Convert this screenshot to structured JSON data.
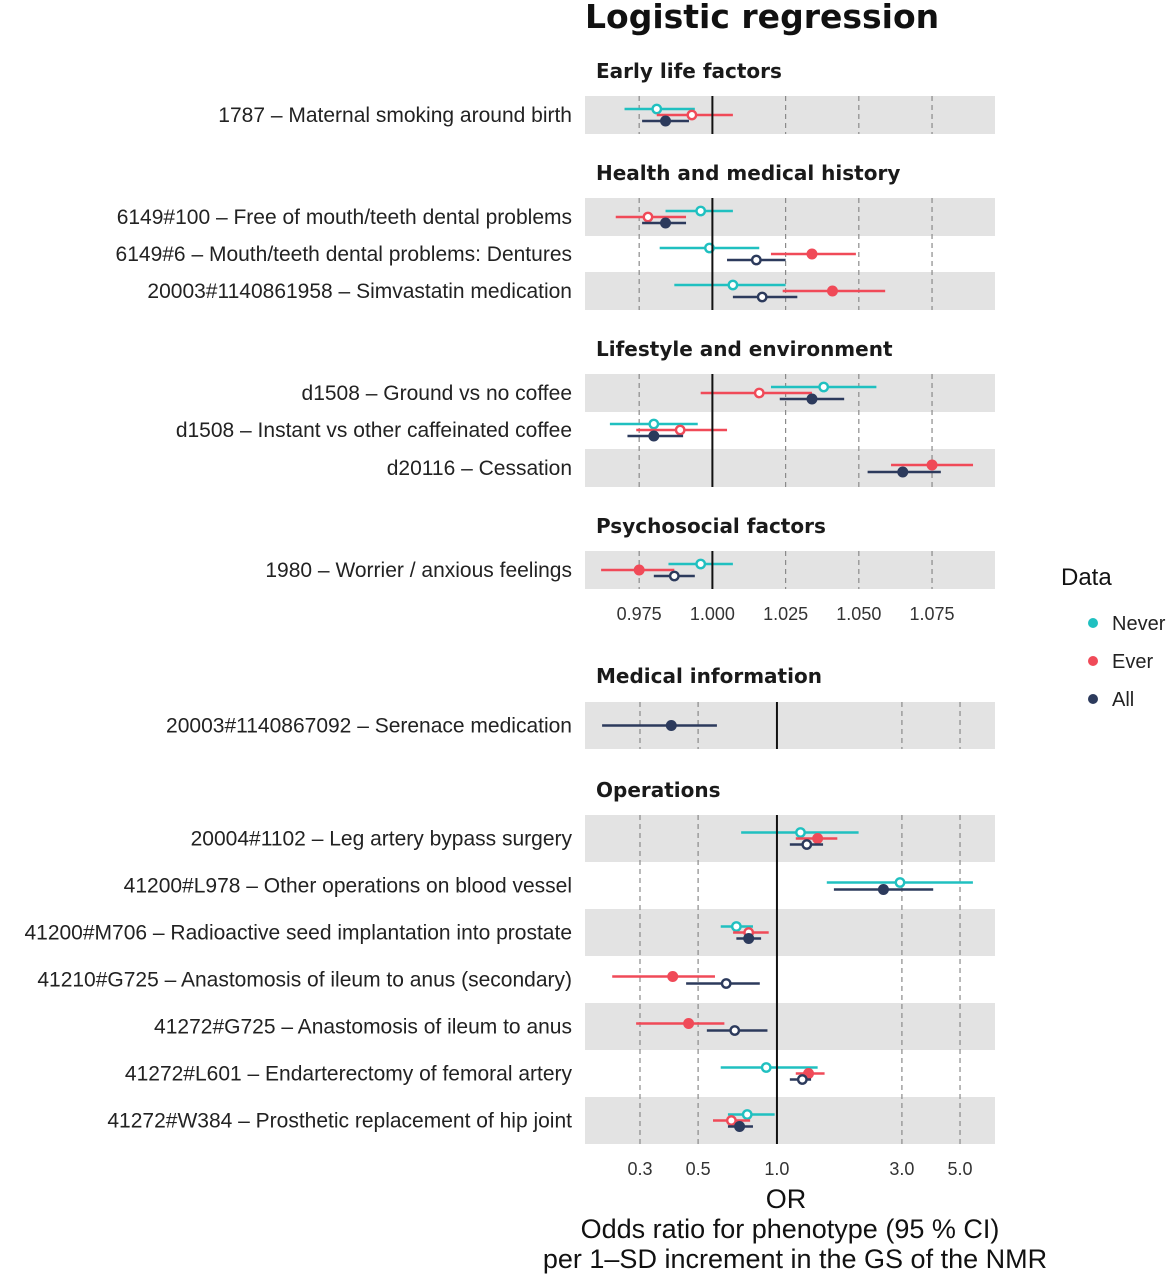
{
  "colors": {
    "Never": "#20c0c0",
    "Ever": "#f04a58",
    "All": "#2c3a5c",
    "band": "#e3e3e3"
  },
  "chart_data": [
    {
      "type": "forest",
      "title": "Logistic regression",
      "scale": "linear",
      "reference": 1.0,
      "xlim": [
        0.9565,
        1.0965
      ],
      "xticks": [
        "0.975",
        "1.000",
        "1.025",
        "1.050",
        "1.075"
      ],
      "sections": [
        {
          "name": "Early life factors",
          "rows": [
            {
              "label": "1787 – Maternal smoking around birth",
              "Never": {
                "est": 0.981,
                "lo": 0.97,
                "hi": 0.994,
                "filled": false
              },
              "Ever": {
                "est": 0.993,
                "lo": 0.981,
                "hi": 1.007,
                "filled": false
              },
              "All": {
                "est": 0.984,
                "lo": 0.976,
                "hi": 0.992,
                "filled": true
              }
            }
          ]
        },
        {
          "name": "Health and medical history",
          "rows": [
            {
              "label": "6149#100 – Free of mouth/teeth dental problems",
              "Never": {
                "est": 0.996,
                "lo": 0.984,
                "hi": 1.007,
                "filled": false
              },
              "Ever": {
                "est": 0.978,
                "lo": 0.967,
                "hi": 0.991,
                "filled": false
              },
              "All": {
                "est": 0.984,
                "lo": 0.976,
                "hi": 0.991,
                "filled": true
              }
            },
            {
              "label": "6149#6 – Mouth/teeth dental problems: Dentures",
              "Never": {
                "est": 0.999,
                "lo": 0.982,
                "hi": 1.016,
                "filled": false
              },
              "Ever": {
                "est": 1.034,
                "lo": 1.02,
                "hi": 1.049,
                "filled": true
              },
              "All": {
                "est": 1.015,
                "lo": 1.005,
                "hi": 1.025,
                "filled": false
              }
            },
            {
              "label": "20003#1140861958 – Simvastatin medication",
              "Never": {
                "est": 1.007,
                "lo": 0.987,
                "hi": 1.025,
                "filled": false
              },
              "Ever": {
                "est": 1.041,
                "lo": 1.024,
                "hi": 1.059,
                "filled": true
              },
              "All": {
                "est": 1.017,
                "lo": 1.007,
                "hi": 1.029,
                "filled": false
              }
            }
          ]
        },
        {
          "name": "Lifestyle and environment",
          "rows": [
            {
              "label": "d1508 – Ground vs no coffee",
              "Never": {
                "est": 1.038,
                "lo": 1.02,
                "hi": 1.056,
                "filled": false
              },
              "Ever": {
                "est": 1.016,
                "lo": 0.996,
                "hi": 1.034,
                "filled": false
              },
              "All": {
                "est": 1.034,
                "lo": 1.023,
                "hi": 1.045,
                "filled": true
              }
            },
            {
              "label": "d1508 – Instant vs other caffeinated coffee",
              "Never": {
                "est": 0.98,
                "lo": 0.965,
                "hi": 0.995,
                "filled": false
              },
              "Ever": {
                "est": 0.989,
                "lo": 0.974,
                "hi": 1.005,
                "filled": false
              },
              "All": {
                "est": 0.98,
                "lo": 0.971,
                "hi": 0.99,
                "filled": true
              }
            },
            {
              "label": "d20116 – Cessation",
              "Never": null,
              "Ever": {
                "est": 1.075,
                "lo": 1.061,
                "hi": 1.089,
                "filled": true
              },
              "All": {
                "est": 1.065,
                "lo": 1.053,
                "hi": 1.078,
                "filled": true
              }
            }
          ]
        },
        {
          "name": "Psychosocial factors",
          "rows": [
            {
              "label": "1980 – Worrier / anxious feelings",
              "Never": {
                "est": 0.996,
                "lo": 0.985,
                "hi": 1.007,
                "filled": false
              },
              "Ever": {
                "est": 0.975,
                "lo": 0.962,
                "hi": 0.987,
                "filled": true
              },
              "All": {
                "est": 0.987,
                "lo": 0.98,
                "hi": 0.994,
                "filled": false
              }
            }
          ]
        }
      ]
    },
    {
      "type": "forest",
      "scale": "log",
      "reference": 1.0,
      "xlim": [
        0.185,
        6.8
      ],
      "xticks": [
        0.3,
        0.5,
        1.0,
        3.0,
        5.0
      ],
      "xtick_labels": [
        "0.3",
        "0.5",
        "1.0",
        "3.0",
        "5.0"
      ],
      "xlabel": "OR",
      "axis_caption": [
        "Odds ratio for phenotype (95 % CI)",
        "per 1–SD increment in the GS of the NMR"
      ],
      "sections": [
        {
          "name": "Medical information",
          "rows": [
            {
              "label": "20003#1140867092 – Serenace medication",
              "Never": null,
              "Ever": null,
              "All": {
                "est": 0.395,
                "lo": 0.215,
                "hi": 0.59,
                "filled": true
              }
            }
          ]
        },
        {
          "name": "Operations",
          "rows": [
            {
              "label": "20004#1102 – Leg artery bypass surgery",
              "Never": {
                "est": 1.23,
                "lo": 0.73,
                "hi": 2.05,
                "filled": false
              },
              "Ever": {
                "est": 1.43,
                "lo": 1.18,
                "hi": 1.7,
                "filled": true
              },
              "All": {
                "est": 1.3,
                "lo": 1.12,
                "hi": 1.5,
                "filled": false
              }
            },
            {
              "label": "41200#L978 – Other operations on blood vessel",
              "Never": {
                "est": 2.95,
                "lo": 1.55,
                "hi": 5.6,
                "filled": false
              },
              "All": {
                "est": 2.55,
                "lo": 1.65,
                "hi": 3.95,
                "filled": true
              },
              "Ever": null
            },
            {
              "label": "41200#M706 – Radioactive seed implantation into prostate",
              "Never": {
                "est": 0.7,
                "lo": 0.61,
                "hi": 0.81,
                "filled": false
              },
              "Ever": {
                "est": 0.78,
                "lo": 0.68,
                "hi": 0.93,
                "filled": false
              },
              "All": {
                "est": 0.78,
                "lo": 0.7,
                "hi": 0.87,
                "filled": true
              }
            },
            {
              "label": "41210#G725 – Anastomosis of ileum to anus (secondary)",
              "Never": null,
              "Ever": {
                "est": 0.4,
                "lo": 0.235,
                "hi": 0.58,
                "filled": true
              },
              "All": {
                "est": 0.64,
                "lo": 0.45,
                "hi": 0.86,
                "filled": false
              }
            },
            {
              "label": "41272#G725 – Anastomosis of ileum to anus",
              "Never": null,
              "Ever": {
                "est": 0.46,
                "lo": 0.29,
                "hi": 0.63,
                "filled": true
              },
              "All": {
                "est": 0.69,
                "lo": 0.54,
                "hi": 0.92,
                "filled": false
              }
            },
            {
              "label": "41272#L601 – Endarterectomy of femoral artery",
              "Never": {
                "est": 0.91,
                "lo": 0.61,
                "hi": 1.43,
                "filled": false
              },
              "Ever": {
                "est": 1.32,
                "lo": 1.18,
                "hi": 1.52,
                "filled": true
              },
              "All": {
                "est": 1.25,
                "lo": 1.12,
                "hi": 1.35,
                "filled": false
              }
            },
            {
              "label": "41272#W384 – Prosthetic replacement of hip joint",
              "Never": {
                "est": 0.77,
                "lo": 0.65,
                "hi": 0.98,
                "filled": false
              },
              "Ever": {
                "est": 0.67,
                "lo": 0.57,
                "hi": 0.79,
                "filled": false
              },
              "All": {
                "est": 0.72,
                "lo": 0.65,
                "hi": 0.81,
                "filled": true
              }
            }
          ]
        }
      ]
    }
  ],
  "legend": {
    "title": "Data",
    "items": [
      "Never",
      "Ever",
      "All"
    ]
  }
}
